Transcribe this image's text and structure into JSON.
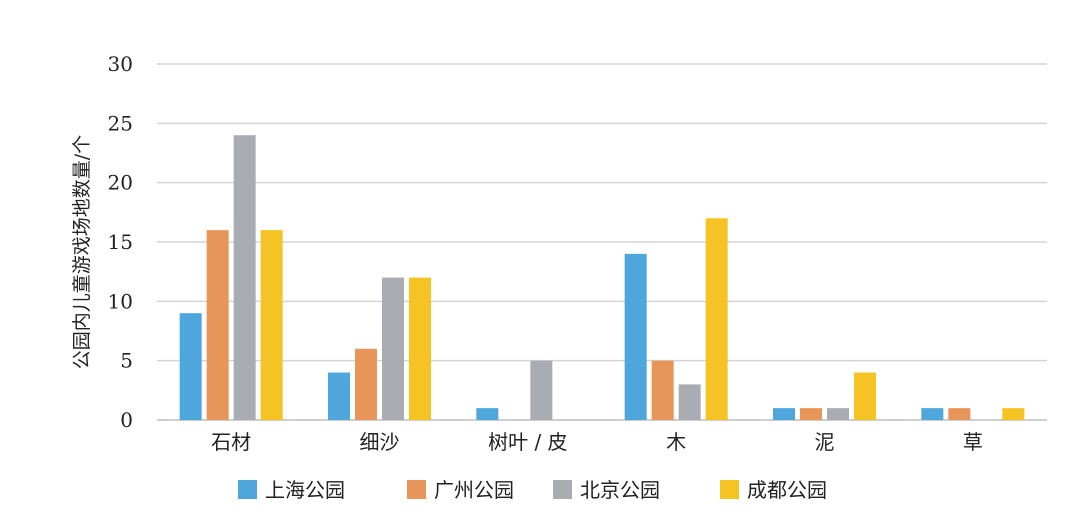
{
  "chart_data": {
    "type": "bar",
    "title": "",
    "xlabel": "",
    "ylabel": "公园内儿童游戏场地数量/个",
    "ylim": [
      0,
      30
    ],
    "yticks": [
      0,
      5,
      10,
      15,
      20,
      25,
      30
    ],
    "grid": true,
    "legend_position": "bottom",
    "categories": [
      "石材",
      "细沙",
      "树叶 / 皮",
      "木",
      "泥",
      "草"
    ],
    "series": [
      {
        "name": "上海公园",
        "color": "#4ea6dd",
        "values": [
          9,
          4,
          1,
          14,
          1,
          1
        ]
      },
      {
        "name": "广州公园",
        "color": "#e8955a",
        "values": [
          16,
          6,
          0,
          5,
          1,
          1
        ]
      },
      {
        "name": "北京公园",
        "color": "#a9adb3",
        "values": [
          24,
          12,
          5,
          3,
          1,
          0
        ]
      },
      {
        "name": "成都公园",
        "color": "#f6c324",
        "values": [
          16,
          12,
          0,
          17,
          4,
          1
        ]
      }
    ]
  }
}
